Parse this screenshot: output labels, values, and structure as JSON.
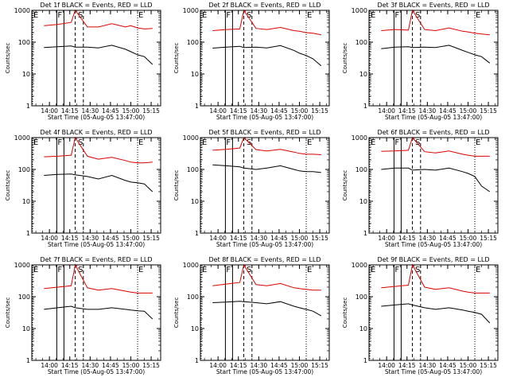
{
  "common": {
    "ylabel": "Counts/sec",
    "xlabel": "Start Time (05-Aug-05 13:47:00)",
    "x_ticks": [
      "14:00",
      "14:15",
      "14:30",
      "14:45",
      "15:00",
      "15:15"
    ],
    "y_ticks": [
      "1",
      "10",
      "100",
      "1000"
    ],
    "markers": [
      {
        "label": "E",
        "time": "13:47"
      },
      {
        "label": "F",
        "time": "14:06"
      },
      {
        "label": "S",
        "time": "14:21"
      },
      {
        "label": "E",
        "time": "15:05"
      }
    ],
    "colors": {
      "events": "#000000",
      "lld": "#dd0000"
    }
  },
  "chart_data": [
    {
      "type": "line",
      "title": "Det 1f BLACK = Events, RED = LLD",
      "yscale": "log",
      "ylim": [
        1,
        1000
      ],
      "x": [
        "13:56",
        "14:06",
        "14:16",
        "14:19",
        "14:28",
        "14:36",
        "14:46",
        "14:56",
        "15:00",
        "15:05",
        "15:10",
        "15:16"
      ],
      "series": [
        {
          "name": "Events",
          "color": "#000000",
          "values": [
            68,
            72,
            76,
            70,
            70,
            66,
            80,
            60,
            50,
            40,
            35,
            20
          ]
        },
        {
          "name": "LLD",
          "color": "#dd0000",
          "values": [
            330,
            360,
            420,
            1000,
            300,
            300,
            380,
            300,
            330,
            280,
            260,
            270
          ]
        }
      ]
    },
    {
      "type": "line",
      "title": "Det 2f BLACK = Events, RED = LLD",
      "yscale": "log",
      "ylim": [
        1,
        1000
      ],
      "x": [
        "13:56",
        "14:06",
        "14:16",
        "14:19",
        "14:28",
        "14:36",
        "14:46",
        "14:56",
        "15:00",
        "15:05",
        "15:10",
        "15:16"
      ],
      "series": [
        {
          "name": "Events",
          "color": "#000000",
          "values": [
            65,
            70,
            74,
            68,
            70,
            66,
            78,
            55,
            45,
            38,
            30,
            18
          ]
        },
        {
          "name": "LLD",
          "color": "#dd0000",
          "values": [
            230,
            250,
            260,
            1000,
            270,
            250,
            290,
            230,
            220,
            200,
            190,
            170
          ]
        }
      ]
    },
    {
      "type": "line",
      "title": "Det 3f BLACK = Events, RED = LLD",
      "yscale": "log",
      "ylim": [
        1,
        1000
      ],
      "x": [
        "13:56",
        "14:06",
        "14:16",
        "14:19",
        "14:28",
        "14:36",
        "14:46",
        "14:56",
        "15:00",
        "15:05",
        "15:10",
        "15:16"
      ],
      "series": [
        {
          "name": "Events",
          "color": "#000000",
          "values": [
            62,
            70,
            72,
            68,
            70,
            68,
            80,
            55,
            48,
            40,
            35,
            22
          ]
        },
        {
          "name": "LLD",
          "color": "#dd0000",
          "values": [
            230,
            250,
            240,
            1000,
            250,
            230,
            280,
            220,
            210,
            190,
            180,
            170
          ]
        }
      ]
    },
    {
      "type": "line",
      "title": "Det 4f BLACK = Events, RED = LLD",
      "yscale": "log",
      "ylim": [
        1,
        1000
      ],
      "x": [
        "13:56",
        "14:06",
        "14:16",
        "14:19",
        "14:28",
        "14:36",
        "14:46",
        "14:56",
        "15:00",
        "15:05",
        "15:10",
        "15:16"
      ],
      "series": [
        {
          "name": "Events",
          "color": "#000000",
          "values": [
            65,
            70,
            72,
            68,
            60,
            50,
            65,
            45,
            40,
            38,
            35,
            20
          ]
        },
        {
          "name": "LLD",
          "color": "#dd0000",
          "values": [
            250,
            260,
            280,
            1000,
            260,
            210,
            240,
            190,
            170,
            160,
            160,
            170
          ]
        }
      ]
    },
    {
      "type": "line",
      "title": "Det 5f BLACK = Events, RED = LLD",
      "yscale": "log",
      "ylim": [
        1,
        1000
      ],
      "x": [
        "13:56",
        "14:06",
        "14:16",
        "14:19",
        "14:28",
        "14:36",
        "14:46",
        "14:56",
        "15:00",
        "15:05",
        "15:10",
        "15:16"
      ],
      "series": [
        {
          "name": "Events",
          "color": "#000000",
          "values": [
            140,
            130,
            120,
            110,
            100,
            110,
            130,
            100,
            90,
            85,
            85,
            80
          ]
        },
        {
          "name": "LLD",
          "color": "#dd0000",
          "values": [
            400,
            430,
            470,
            1000,
            420,
            380,
            430,
            350,
            320,
            300,
            300,
            290
          ]
        }
      ]
    },
    {
      "type": "line",
      "title": "Det 6f BLACK = Events, RED = LLD",
      "yscale": "log",
      "ylim": [
        1,
        1000
      ],
      "x": [
        "13:56",
        "14:06",
        "14:16",
        "14:19",
        "14:28",
        "14:36",
        "14:46",
        "14:56",
        "15:00",
        "15:05",
        "15:10",
        "15:16"
      ],
      "series": [
        {
          "name": "Events",
          "color": "#000000",
          "values": [
            100,
            110,
            110,
            95,
            100,
            95,
            110,
            85,
            75,
            60,
            30,
            20
          ]
        },
        {
          "name": "LLD",
          "color": "#dd0000",
          "values": [
            370,
            380,
            400,
            1000,
            360,
            330,
            380,
            300,
            280,
            260,
            260,
            260
          ]
        }
      ]
    },
    {
      "type": "line",
      "title": "Det 7f BLACK = Events, RED = LLD",
      "yscale": "log",
      "ylim": [
        1,
        1000
      ],
      "x": [
        "13:56",
        "14:06",
        "14:16",
        "14:19",
        "14:28",
        "14:36",
        "14:46",
        "14:56",
        "15:00",
        "15:05",
        "15:10",
        "15:16"
      ],
      "series": [
        {
          "name": "Events",
          "color": "#000000",
          "values": [
            40,
            45,
            50,
            45,
            40,
            40,
            45,
            40,
            38,
            36,
            35,
            20
          ]
        },
        {
          "name": "LLD",
          "color": "#dd0000",
          "values": [
            180,
            200,
            220,
            1000,
            190,
            160,
            180,
            150,
            140,
            130,
            130,
            130
          ]
        }
      ]
    },
    {
      "type": "line",
      "title": "Det 8f BLACK = Events, RED = LLD",
      "yscale": "log",
      "ylim": [
        1,
        1000
      ],
      "x": [
        "13:56",
        "14:06",
        "14:16",
        "14:19",
        "14:28",
        "14:36",
        "14:46",
        "14:56",
        "15:00",
        "15:05",
        "15:10",
        "15:16"
      ],
      "series": [
        {
          "name": "Events",
          "color": "#000000",
          "values": [
            65,
            68,
            72,
            70,
            65,
            60,
            70,
            50,
            45,
            40,
            35,
            25
          ]
        },
        {
          "name": "LLD",
          "color": "#dd0000",
          "values": [
            220,
            250,
            280,
            1000,
            240,
            220,
            260,
            190,
            180,
            170,
            160,
            160
          ]
        }
      ]
    },
    {
      "type": "line",
      "title": "Det 9f BLACK = Events, RED = LLD",
      "yscale": "log",
      "ylim": [
        1,
        1000
      ],
      "x": [
        "13:56",
        "14:06",
        "14:16",
        "14:19",
        "14:28",
        "14:36",
        "14:46",
        "14:56",
        "15:00",
        "15:05",
        "15:10",
        "15:16"
      ],
      "series": [
        {
          "name": "Events",
          "color": "#000000",
          "values": [
            50,
            55,
            60,
            55,
            45,
            40,
            45,
            38,
            35,
            32,
            28,
            15
          ]
        },
        {
          "name": "LLD",
          "color": "#dd0000",
          "values": [
            190,
            210,
            230,
            1000,
            200,
            170,
            190,
            150,
            140,
            130,
            130,
            130
          ]
        }
      ]
    }
  ]
}
